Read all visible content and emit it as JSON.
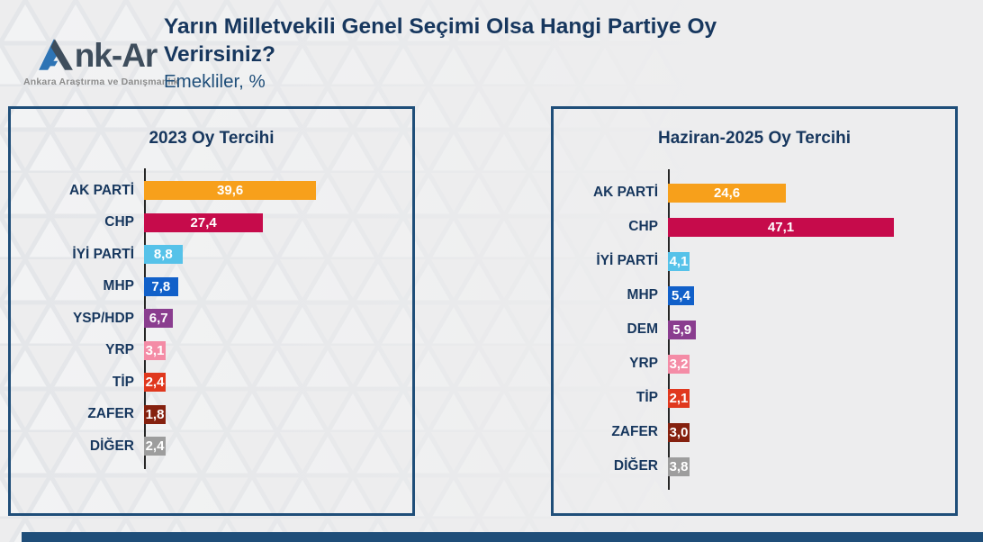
{
  "header": {
    "logo": {
      "brand_first_letter": "A",
      "brand_rest": "nk-Ar",
      "tagline": "Ankara Araştırma ve Danışmanlık"
    },
    "title": "Yarın Milletvekili Genel Seçimi Olsa Hangi Partiye Oy Verirsiniz?",
    "subtitle": "Emekliler, %"
  },
  "colors": {
    "navy_text": "#17375E",
    "panel_border": "#1F4E79",
    "footer_bar": "#1F4E79",
    "logo_blue": "#2E74B5",
    "logo_slate": "#3E4D5C",
    "axis": "#262626",
    "value_text": "#FFFFFF",
    "background": "#EDEDEE"
  },
  "chart_data": [
    {
      "type": "bar",
      "orientation": "horizontal",
      "title": "2023 Oy Tercihi",
      "unit": "%",
      "grid": false,
      "value_labels_inside": true,
      "xlim": [
        0,
        45
      ],
      "categories": [
        "AK PARTİ",
        "CHP",
        "İYİ PARTİ",
        "MHP",
        "YSP/HDP",
        "YRP",
        "TİP",
        "ZAFER",
        "DİĞER"
      ],
      "values": [
        39.6,
        27.4,
        8.8,
        7.8,
        6.7,
        3.1,
        2.4,
        1.8,
        2.4
      ],
      "labels": [
        "39,6",
        "27,4",
        "8,8",
        "7,8",
        "6,7",
        "3,1",
        "2,4",
        "1,8",
        "2,4"
      ],
      "bar_colors": [
        "#F7A01B",
        "#C60B4B",
        "#56C2E9",
        "#1160C9",
        "#8A3D8F",
        "#F48CA6",
        "#E0381E",
        "#85210F",
        "#9D9D9D"
      ]
    },
    {
      "type": "bar",
      "orientation": "horizontal",
      "title": "Haziran-2025 Oy Tercihi",
      "unit": "%",
      "grid": false,
      "value_labels_inside": true,
      "xlim": [
        0,
        50
      ],
      "categories": [
        "AK PARTİ",
        "CHP",
        "İYİ PARTİ",
        "MHP",
        "DEM",
        "YRP",
        "TİP",
        "ZAFER",
        "DİĞER"
      ],
      "values": [
        24.6,
        47.1,
        4.1,
        5.4,
        5.9,
        3.2,
        2.1,
        3.0,
        3.8
      ],
      "labels": [
        "24,6",
        "47,1",
        "4,1",
        "5,4",
        "5,9",
        "3,2",
        "2,1",
        "3,0",
        "3,8"
      ],
      "bar_colors": [
        "#F7A01B",
        "#C60B4B",
        "#56C2E9",
        "#1160C9",
        "#8A3D8F",
        "#F48CA6",
        "#E0381E",
        "#85210F",
        "#9D9D9D"
      ]
    }
  ]
}
